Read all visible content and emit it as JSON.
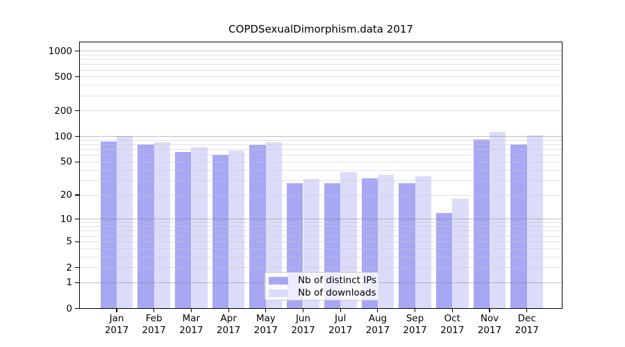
{
  "chart_data": {
    "type": "bar",
    "title": "COPDSexualDimorphism.data 2017",
    "categories": [
      "Jan",
      "Feb",
      "Mar",
      "Apr",
      "May",
      "Jun",
      "Jul",
      "Aug",
      "Sep",
      "Oct",
      "Nov",
      "Dec"
    ],
    "year": "2017",
    "series": [
      {
        "name": "Nb of distinct IPs",
        "color": "#a7a7f4",
        "values": [
          87,
          81,
          66,
          61,
          80,
          28,
          28,
          32,
          28,
          12,
          92,
          81
        ]
      },
      {
        "name": "Nb of downloads",
        "color": "#dcdcfa",
        "values": [
          101,
          86,
          75,
          68,
          86,
          31,
          38,
          35,
          34,
          18,
          114,
          103
        ]
      }
    ],
    "y_scale": "log10(value+1)",
    "y_tick_values": [
      1000,
      500,
      200,
      100,
      50,
      20,
      10,
      5,
      2,
      1,
      0
    ],
    "y_gridlines_major": [
      1,
      10,
      100,
      1000
    ],
    "y_gridlines_minor": [
      2,
      3,
      4,
      5,
      6,
      7,
      8,
      9,
      20,
      30,
      40,
      50,
      60,
      70,
      80,
      90,
      200,
      300,
      400,
      500,
      600,
      700,
      800,
      900
    ],
    "ylim": [
      0,
      1280
    ],
    "grid": true,
    "legend_position": "lower center-left inside plot",
    "colors": {
      "background": "#ffffff",
      "axis": "#000000",
      "grid_major": "#b3b3b3",
      "grid_minor": "#e4e4e4",
      "legend_border": "#cccccc"
    }
  }
}
